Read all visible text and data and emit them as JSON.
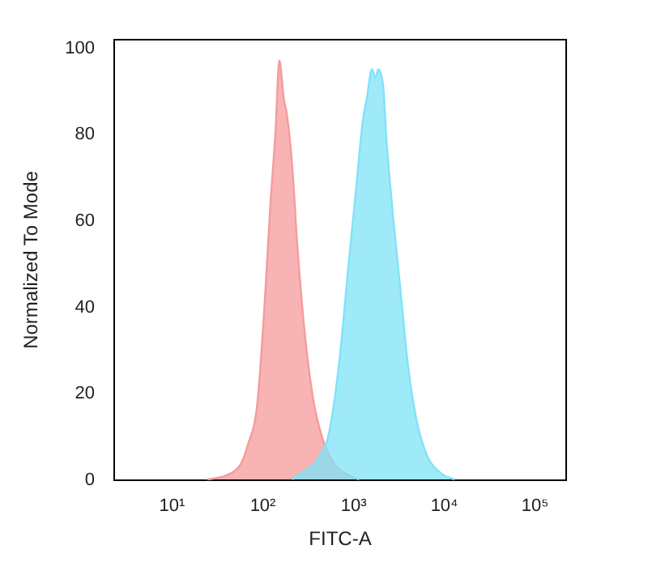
{
  "chart_data": {
    "type": "area",
    "xlabel": "FITC-A",
    "ylabel": "Normalized To Mode",
    "log": "x",
    "grid": false,
    "xlim": [
      2.3,
      220000
    ],
    "ylim": [
      0,
      102
    ],
    "xticks": [
      {
        "value": 10,
        "label": "10¹"
      },
      {
        "value": 100,
        "label": "10²"
      },
      {
        "value": 1000,
        "label": "10³"
      },
      {
        "value": 10000,
        "label": "10⁴"
      },
      {
        "value": 100000,
        "label": "10⁵"
      }
    ],
    "yticks": [
      0,
      20,
      40,
      60,
      80,
      100
    ],
    "series": [
      {
        "color": "#f59b9b",
        "x": [
          25,
          41,
          58,
          71,
          87,
          107,
          123,
          141,
          155,
          174,
          186,
          214,
          245,
          295,
          363,
          479,
          631,
          891,
          1175
        ],
        "values": [
          0,
          1,
          3.5,
          8.5,
          16,
          41,
          63,
          81,
          97,
          88,
          85,
          73,
          54,
          34,
          19,
          8.5,
          3.5,
          1,
          0
        ]
      },
      {
        "color": "#7fe3f7",
        "x": [
          214,
          275,
          417,
          550,
          724,
          891,
          1096,
          1288,
          1445,
          1622,
          1778,
          1905,
          2138,
          2344,
          2692,
          3311,
          4074,
          5012,
          6607,
          8710,
          13183
        ],
        "values": [
          0,
          1.6,
          5,
          11,
          29,
          49,
          68,
          83,
          89,
          95,
          93,
          95,
          92,
          79,
          64,
          45,
          26,
          14,
          5.4,
          2,
          0
        ]
      }
    ]
  }
}
